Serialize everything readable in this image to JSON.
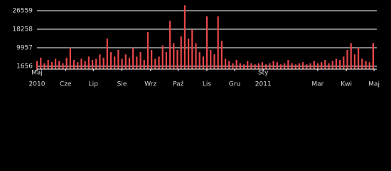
{
  "chart_data": {
    "type": "bar",
    "color": "#e8474a",
    "grid": true,
    "x": [
      0,
      4,
      8,
      12,
      16,
      20,
      24,
      28,
      32,
      36,
      40,
      44,
      48,
      52,
      56,
      60,
      64,
      68,
      72,
      76,
      80,
      84,
      88,
      92,
      96,
      100,
      104,
      108,
      112,
      116,
      120,
      124,
      128,
      132,
      136,
      140,
      144,
      148,
      152,
      156,
      160,
      164,
      168,
      172,
      176,
      180,
      184,
      188,
      192,
      196,
      200,
      204,
      208,
      212,
      216,
      220,
      224,
      228,
      232,
      236,
      240,
      244,
      248,
      252,
      256,
      260,
      264,
      268,
      272,
      276,
      280,
      284,
      288,
      292,
      296,
      300,
      304,
      308,
      312,
      316,
      320,
      324,
      328,
      332,
      336,
      340,
      344,
      348,
      352,
      356,
      360,
      364
    ],
    "values": [
      4000,
      5500,
      3000,
      4500,
      3500,
      5000,
      4000,
      3000,
      5500,
      10000,
      4500,
      3500,
      5000,
      4000,
      6000,
      4500,
      5000,
      7000,
      5500,
      14000,
      8000,
      6000,
      9000,
      5000,
      7000,
      5500,
      10000,
      6000,
      8000,
      4500,
      17000,
      9000,
      5000,
      6000,
      11000,
      8000,
      22000,
      12000,
      9000,
      15000,
      29000,
      14000,
      18000,
      12000,
      8000,
      6000,
      24000,
      9000,
      7000,
      24000,
      13000,
      5000,
      4000,
      3000,
      4500,
      3000,
      2500,
      4000,
      3000,
      2500,
      3000,
      3500,
      2500,
      3000,
      4000,
      3500,
      2500,
      3000,
      4500,
      3000,
      2500,
      3000,
      3500,
      2500,
      3000,
      4000,
      3000,
      3500,
      4500,
      3000,
      4000,
      5000,
      4500,
      6000,
      9000,
      12000,
      7000,
      10000,
      5000,
      4000,
      3500,
      12000
    ],
    "xlim": [
      0,
      368
    ],
    "xticks": [
      {
        "value": 0,
        "label": "Maj",
        "year": "2010"
      },
      {
        "value": 31,
        "label": "Cze"
      },
      {
        "value": 61,
        "label": "Lip"
      },
      {
        "value": 92,
        "label": "Sie"
      },
      {
        "value": 123,
        "label": "Wrz"
      },
      {
        "value": 153,
        "label": "Paź"
      },
      {
        "value": 184,
        "label": "Lis"
      },
      {
        "value": 214,
        "label": "Gru"
      },
      {
        "value": 245,
        "label": "Sty",
        "year": "2011"
      },
      {
        "value": 304,
        "label": "Mar"
      },
      {
        "value": 335,
        "label": "Kwi"
      },
      {
        "value": 365,
        "label": "Maj"
      }
    ],
    "ylim": [
      379,
      29750
    ],
    "yticks": [
      1656,
      9957,
      18258,
      26559
    ]
  }
}
